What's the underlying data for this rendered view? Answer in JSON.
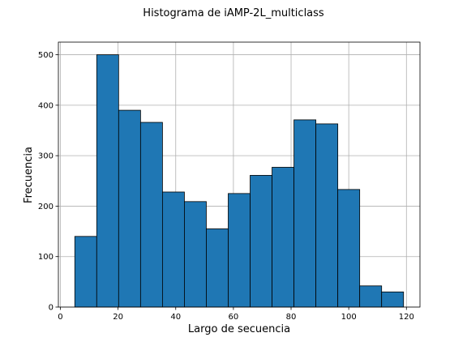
{
  "chart_data": {
    "type": "bar",
    "title": "Histograma de iAMP-2L_multiclass",
    "xlabel": "Largo de secuencia",
    "ylabel": "Frecuencia",
    "bin_edges": [
      5,
      12.6,
      20.2,
      27.8,
      35.4,
      43.0,
      50.6,
      58.2,
      65.8,
      73.4,
      81.0,
      88.6,
      96.2,
      103.8,
      111.4,
      119.0
    ],
    "values": [
      140,
      500,
      390,
      366,
      228,
      209,
      155,
      225,
      261,
      277,
      371,
      363,
      233,
      42,
      30
    ],
    "xlim": [
      -0.7,
      124.7
    ],
    "ylim": [
      0,
      525
    ],
    "xticks": [
      0,
      20,
      40,
      60,
      80,
      100,
      120
    ],
    "yticks": [
      0,
      100,
      200,
      300,
      400,
      500
    ],
    "grid": true,
    "bar_color": "#1f77b4",
    "edge_color": "#000000"
  }
}
